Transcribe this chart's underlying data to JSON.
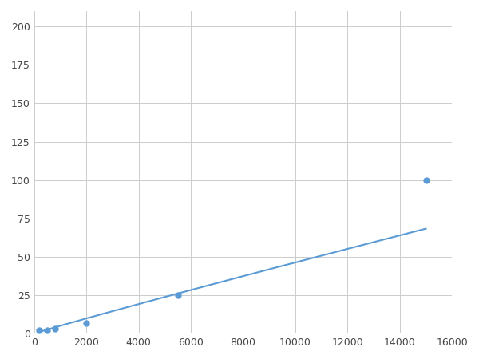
{
  "x": [
    200,
    500,
    800,
    2000,
    5500,
    15000
  ],
  "y": [
    2,
    2,
    3,
    7,
    25,
    100
  ],
  "line_color": "#5b9bd5",
  "marker_color": "#5b9bd5",
  "marker_size": 5,
  "marker_style": "o",
  "xlim": [
    0,
    16000
  ],
  "ylim": [
    0,
    210
  ],
  "xticks": [
    0,
    2000,
    4000,
    6000,
    8000,
    10000,
    12000,
    14000,
    16000
  ],
  "yticks": [
    0,
    25,
    50,
    75,
    100,
    125,
    150,
    175,
    200
  ],
  "grid_color": "#cccccc",
  "background_color": "#ffffff",
  "line_width": 1.5
}
